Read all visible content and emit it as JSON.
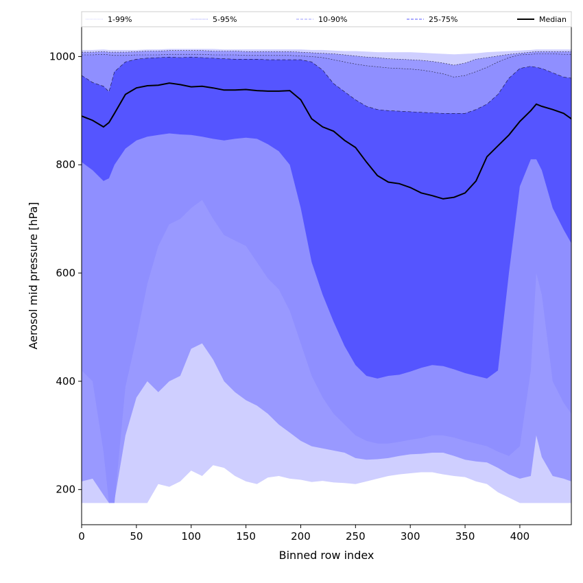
{
  "chart_data": {
    "type": "area",
    "xlabel": "Binned row index",
    "ylabel": "Aerosol mid pressure [hPa]",
    "xlim": [
      0,
      447
    ],
    "ylim": [
      135,
      1055
    ],
    "x_ticks": [
      "0",
      "50",
      "100",
      "150",
      "200",
      "250",
      "300",
      "350",
      "400"
    ],
    "y_ticks": [
      "200",
      "400",
      "600",
      "800",
      "1000"
    ],
    "legend": {
      "placement": "top",
      "entries": [
        {
          "label": "1-99%",
          "style": "thin-dotted",
          "color": "#cfcfff"
        },
        {
          "label": "5-95%",
          "style": "thin-dotted",
          "color": "#9999ff"
        },
        {
          "label": "10-90%",
          "style": "dashed",
          "color": "#9999ff"
        },
        {
          "label": "25-75%",
          "style": "dashed",
          "color": "#5555ff"
        },
        {
          "label": "Median",
          "style": "solid",
          "color": "#000000"
        }
      ]
    },
    "x": [
      0,
      10,
      20,
      25,
      30,
      40,
      50,
      60,
      70,
      80,
      90,
      100,
      110,
      120,
      130,
      140,
      150,
      160,
      170,
      180,
      190,
      200,
      210,
      220,
      230,
      240,
      250,
      260,
      270,
      280,
      290,
      300,
      310,
      320,
      330,
      340,
      350,
      360,
      370,
      380,
      390,
      400,
      410,
      415,
      420,
      430,
      440,
      447
    ],
    "series": [
      {
        "name": "1-99%",
        "color": "#cfcfff",
        "upper": [
          1012,
          1012,
          1013,
          1012,
          1012,
          1012,
          1012,
          1013,
          1013,
          1014,
          1014,
          1014,
          1014,
          1014,
          1013,
          1013,
          1013,
          1013,
          1013,
          1013,
          1013,
          1013,
          1012,
          1012,
          1011,
          1010,
          1010,
          1009,
          1008,
          1008,
          1008,
          1008,
          1007,
          1006,
          1005,
          1004,
          1005,
          1006,
          1008,
          1009,
          1010,
          1011,
          1012,
          1013,
          1013,
          1013,
          1013,
          1013
        ],
        "lower": [
          175,
          175,
          175,
          175,
          175,
          175,
          175,
          175,
          210,
          205,
          215,
          235,
          225,
          245,
          240,
          225,
          215,
          210,
          222,
          225,
          220,
          218,
          214,
          216,
          213,
          212,
          210,
          215,
          220,
          225,
          228,
          230,
          232,
          232,
          228,
          225,
          223,
          215,
          210,
          195,
          185,
          175,
          175,
          175,
          175,
          175,
          175,
          175
        ]
      },
      {
        "name": "5-95%",
        "color": "#9999ff",
        "upper": [
          1008,
          1008,
          1009,
          1008,
          1008,
          1008,
          1009,
          1010,
          1010,
          1011,
          1011,
          1011,
          1011,
          1010,
          1010,
          1010,
          1009,
          1009,
          1009,
          1009,
          1009,
          1008,
          1007,
          1006,
          1005,
          1003,
          1001,
          999,
          998,
          996,
          995,
          994,
          993,
          991,
          988,
          984,
          988,
          995,
          998,
          1001,
          1004,
          1006,
          1008,
          1009,
          1009,
          1009,
          1009,
          1009
        ],
        "lower": [
          215,
          220,
          190,
          175,
          180,
          300,
          370,
          400,
          380,
          400,
          410,
          460,
          470,
          440,
          400,
          380,
          365,
          355,
          340,
          320,
          305,
          290,
          280,
          276,
          272,
          268,
          258,
          255,
          256,
          258,
          262,
          265,
          266,
          268,
          268,
          262,
          255,
          252,
          250,
          240,
          228,
          220,
          225,
          300,
          260,
          225,
          220,
          215
        ]
      },
      {
        "name": "10-90%",
        "color": "#8f8fff",
        "upper": [
          1003,
          1003,
          1004,
          1003,
          1002,
          1002,
          1003,
          1003,
          1003,
          1004,
          1004,
          1004,
          1004,
          1003,
          1003,
          1003,
          1002,
          1002,
          1002,
          1002,
          1002,
          1001,
          1000,
          998,
          994,
          990,
          986,
          983,
          981,
          979,
          978,
          977,
          975,
          972,
          968,
          962,
          965,
          972,
          980,
          990,
          998,
          1003,
          1004,
          1005,
          1005,
          1005,
          1004,
          1004
        ],
        "lower": [
          420,
          400,
          270,
          175,
          175,
          390,
          480,
          580,
          650,
          690,
          700,
          720,
          735,
          700,
          670,
          660,
          650,
          620,
          590,
          570,
          530,
          470,
          410,
          370,
          340,
          320,
          300,
          290,
          285,
          285,
          288,
          292,
          295,
          300,
          300,
          296,
          290,
          285,
          280,
          270,
          262,
          280,
          420,
          600,
          560,
          400,
          360,
          340
        ]
      },
      {
        "name": "25-75%",
        "color": "#5555ff",
        "upper": [
          965,
          952,
          945,
          935,
          972,
          990,
          995,
          997,
          998,
          999,
          998,
          999,
          998,
          997,
          996,
          995,
          995,
          995,
          994,
          994,
          994,
          994,
          990,
          975,
          950,
          935,
          920,
          908,
          902,
          900,
          899,
          898,
          897,
          896,
          895,
          895,
          895,
          902,
          912,
          930,
          960,
          978,
          982,
          980,
          978,
          970,
          962,
          960
        ],
        "lower": [
          805,
          790,
          770,
          775,
          800,
          830,
          845,
          852,
          855,
          858,
          856,
          855,
          852,
          848,
          845,
          848,
          850,
          848,
          838,
          825,
          800,
          720,
          620,
          560,
          510,
          465,
          430,
          410,
          405,
          410,
          412,
          418,
          425,
          430,
          428,
          422,
          415,
          410,
          405,
          420,
          600,
          760,
          810,
          810,
          790,
          720,
          680,
          655
        ]
      },
      {
        "name": "Median",
        "color": "#000000",
        "line": true,
        "values": [
          890,
          882,
          870,
          878,
          895,
          930,
          942,
          946,
          947,
          951,
          948,
          944,
          945,
          942,
          938,
          938,
          939,
          937,
          936,
          936,
          937,
          920,
          885,
          870,
          862,
          845,
          832,
          805,
          780,
          768,
          765,
          758,
          748,
          743,
          737,
          740,
          748,
          770,
          815,
          835,
          855,
          880,
          900,
          912,
          908,
          902,
          895,
          885
        ]
      }
    ]
  }
}
